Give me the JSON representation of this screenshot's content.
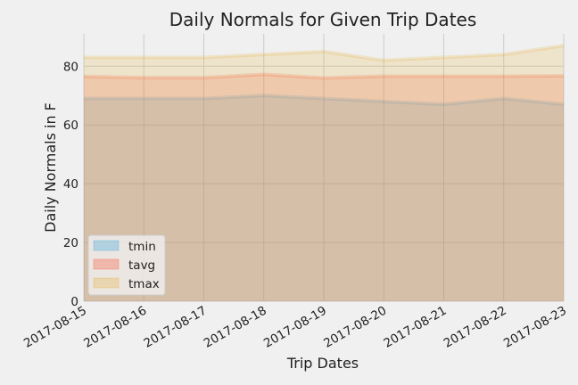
{
  "chart_data": {
    "type": "area",
    "title": "Daily Normals for Given Trip Dates",
    "xlabel": "Trip Dates",
    "ylabel": "Daily Normals in F",
    "x": [
      "2017-08-15",
      "2017-08-16",
      "2017-08-17",
      "2017-08-18",
      "2017-08-19",
      "2017-08-20",
      "2017-08-21",
      "2017-08-22",
      "2017-08-23"
    ],
    "ylim": [
      0,
      91
    ],
    "yticks": [
      0,
      20,
      40,
      60,
      80
    ],
    "grid": true,
    "stacked": false,
    "legend_position": "lower-left",
    "series": [
      {
        "name": "tmin",
        "color": "#30a2da",
        "values": [
          69,
          69,
          69,
          70,
          69,
          68,
          67,
          69,
          67
        ]
      },
      {
        "name": "tavg",
        "color": "#fc4f30",
        "values": [
          76.5,
          76.1,
          76.1,
          77.2,
          76.0,
          76.6,
          76.6,
          76.6,
          76.7
        ]
      },
      {
        "name": "tmax",
        "color": "#e5ae38",
        "values": [
          83,
          83,
          83,
          84,
          85,
          82,
          83,
          84,
          87
        ]
      }
    ]
  }
}
